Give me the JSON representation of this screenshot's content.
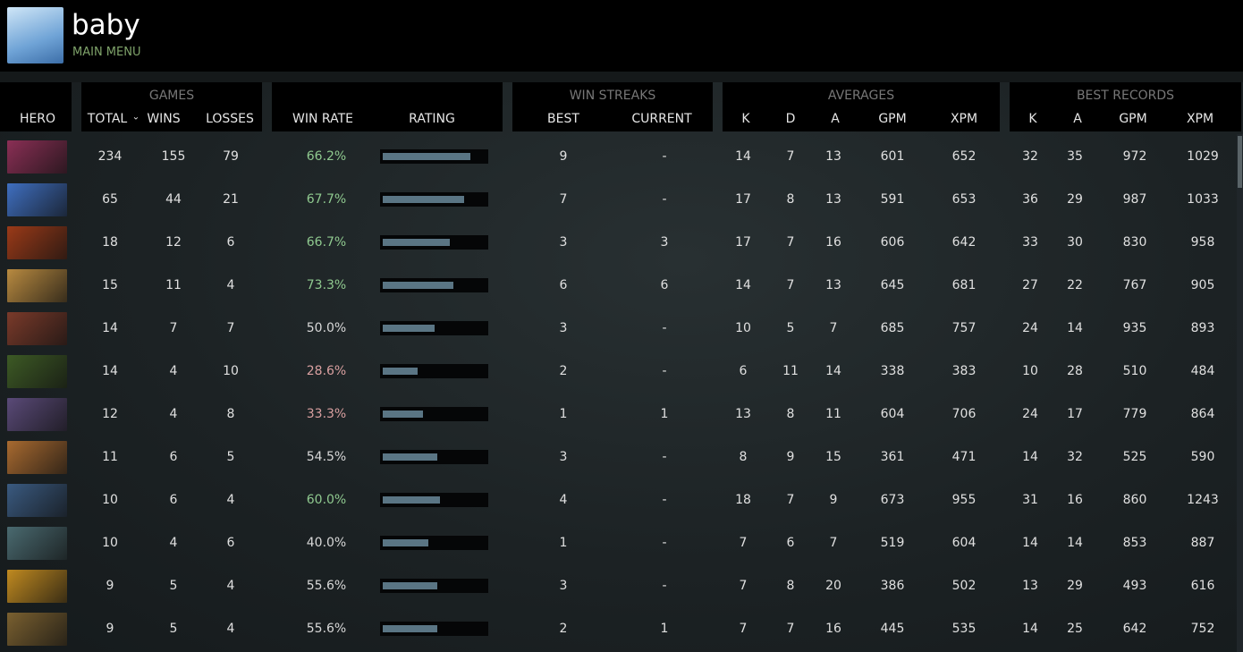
{
  "header": {
    "title": "baby",
    "subtitle": "MAIN MENU"
  },
  "table": {
    "groups": [
      "GAMES",
      "WIN STREAKS",
      "AVERAGES",
      "BEST RECORDS"
    ],
    "columns": [
      "HERO",
      "TOTAL",
      "WINS",
      "LOSSES",
      "WIN RATE",
      "RATING",
      "BEST",
      "CURRENT",
      "K",
      "D",
      "A",
      "GPM",
      "XPM",
      "K",
      "A",
      "GPM",
      "XPM"
    ],
    "rating_lim": [
      0,
      100
    ],
    "win_rate_colors": [
      "#8fc98f",
      "#8fc98f",
      "#8fc98f",
      "#8fc98f",
      "#d8d8d8",
      "#d9a0a0",
      "#d9a0a0",
      "#d8d8d8",
      "#8fc98f",
      "#d8d8d8",
      "#d8d8d8",
      "#d8d8d8"
    ],
    "rows": [
      [
        234,
        155,
        79,
        "66.2%",
        85,
        9,
        "-",
        14,
        7,
        13,
        601,
        652,
        32,
        35,
        972,
        1029
      ],
      [
        65,
        44,
        21,
        "67.7%",
        79,
        7,
        "-",
        17,
        8,
        13,
        591,
        653,
        36,
        29,
        987,
        1033
      ],
      [
        18,
        12,
        6,
        "66.7%",
        65,
        3,
        3,
        17,
        7,
        16,
        606,
        642,
        33,
        30,
        830,
        958
      ],
      [
        15,
        11,
        4,
        "73.3%",
        69,
        6,
        6,
        14,
        7,
        13,
        645,
        681,
        27,
        22,
        767,
        905
      ],
      [
        14,
        7,
        7,
        "50.0%",
        50,
        3,
        "-",
        10,
        5,
        7,
        685,
        757,
        24,
        14,
        935,
        893
      ],
      [
        14,
        4,
        10,
        "28.6%",
        34,
        2,
        "-",
        6,
        11,
        14,
        338,
        383,
        10,
        28,
        510,
        484
      ],
      [
        12,
        4,
        8,
        "33.3%",
        39,
        1,
        1,
        13,
        8,
        11,
        604,
        706,
        24,
        17,
        779,
        864
      ],
      [
        11,
        6,
        5,
        "54.5%",
        53,
        3,
        "-",
        8,
        9,
        15,
        361,
        471,
        14,
        32,
        525,
        590
      ],
      [
        10,
        6,
        4,
        "60.0%",
        56,
        4,
        "-",
        18,
        7,
        9,
        673,
        955,
        31,
        16,
        860,
        1243
      ],
      [
        10,
        4,
        6,
        "40.0%",
        44,
        1,
        "-",
        7,
        6,
        7,
        519,
        604,
        14,
        14,
        853,
        887
      ],
      [
        9,
        5,
        4,
        "55.6%",
        53,
        3,
        "-",
        7,
        8,
        20,
        386,
        502,
        13,
        29,
        493,
        616
      ],
      [
        9,
        5,
        4,
        "55.6%",
        53,
        2,
        1,
        7,
        7,
        16,
        445,
        535,
        14,
        25,
        642,
        752
      ]
    ]
  }
}
